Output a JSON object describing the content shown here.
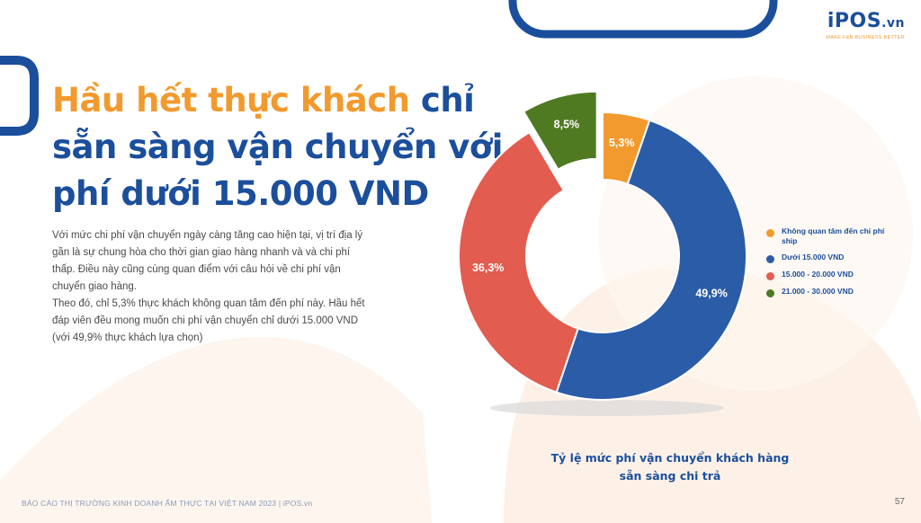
{
  "brand": {
    "logo_main": "iPOS",
    "logo_suffix": ".vn",
    "tagline": "MAKE F&B BUSINESS BETTER"
  },
  "title": {
    "highlight": "Hầu hết thực khách",
    "rest": " chỉ sẵn sàng vận chuyển với phí dưới 15.000 VND"
  },
  "body": {
    "paragraph_1": "Với mức chi phí vận chuyển ngày càng tăng cao hiện tại, vị trí địa lý gần là sự chung hòa cho thời gian giao hàng nhanh và và chi phí thấp. Điều này cũng cùng quan điểm với câu hỏi về chi phí vận chuyển giao hàng.",
    "paragraph_2": "Theo đó, chỉ 5,3% thực khách không quan tâm đến phí này. Hầu hết đáp viên đều mong muốn chi phí vận chuyển chỉ dưới 15.000 VND (với 49,9% thực khách lựa chọn)"
  },
  "chart_data": {
    "type": "pie",
    "variant": "donut",
    "slices": [
      {
        "label": "Không quan tâm đến chi phí ship",
        "value": 5.3,
        "display": "5,3%",
        "color": "#f29a2e",
        "exploded": false
      },
      {
        "label": "Dưới 15.000 VND",
        "value": 49.9,
        "display": "49,9%",
        "color": "#2b5ca8",
        "exploded": false
      },
      {
        "label": "15.000 - 20.000 VND",
        "value": 36.3,
        "display": "36,3%",
        "color": "#e25c4f",
        "exploded": false
      },
      {
        "label": "21.000 - 30.000 VND",
        "value": 8.5,
        "display": "8,5%",
        "color": "#4f7a22",
        "exploded": true
      }
    ],
    "legend_position": "right",
    "caption": "Tỷ lệ mức phí vận chuyển khách hàng sẵn sàng chi trả"
  },
  "footer": {
    "text": "BÁO CÁO THỊ TRƯỜNG KINH DOANH ẨM THỰC TẠI VIỆT NAM 2023 | iPOS.vn",
    "page": "57"
  }
}
